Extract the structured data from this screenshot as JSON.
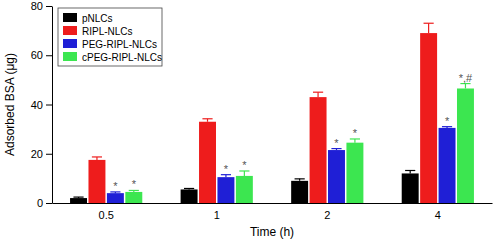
{
  "chart_data": {
    "type": "bar",
    "x_label": "Time (h)",
    "y_label": "Adsorbed BSA (μg)",
    "categories": [
      "0.5",
      "1",
      "2",
      "4"
    ],
    "series": [
      {
        "name": "pNLCs",
        "color": "#000000",
        "values": [
          2,
          5.5,
          9,
          12
        ],
        "errors": [
          0.4,
          0.4,
          0.8,
          1.2
        ]
      },
      {
        "name": "RIPL-NLCs",
        "color": "#ee1c1c",
        "values": [
          17.5,
          33,
          43,
          69
        ],
        "errors": [
          1.2,
          1.2,
          2,
          4
        ]
      },
      {
        "name": "PEG-RIPL-NLCs",
        "color": "#1f1fd6",
        "values": [
          4,
          10.5,
          21.5,
          30.5
        ],
        "errors": [
          0.5,
          1,
          0.6,
          0.5
        ],
        "annotations": [
          "*",
          "*",
          "*",
          "*"
        ]
      },
      {
        "name": "cPEG-RIPL-NLCs",
        "color": "#3ce650",
        "values": [
          4.5,
          11,
          24.5,
          46.5
        ],
        "errors": [
          0.6,
          2,
          1.5,
          2
        ],
        "annotations": [
          "*",
          "*",
          "*",
          "*,#"
        ]
      }
    ],
    "ylim": [
      0,
      80
    ],
    "yticks": [
      0,
      20,
      40,
      60,
      80
    ],
    "legend": "upper left"
  }
}
